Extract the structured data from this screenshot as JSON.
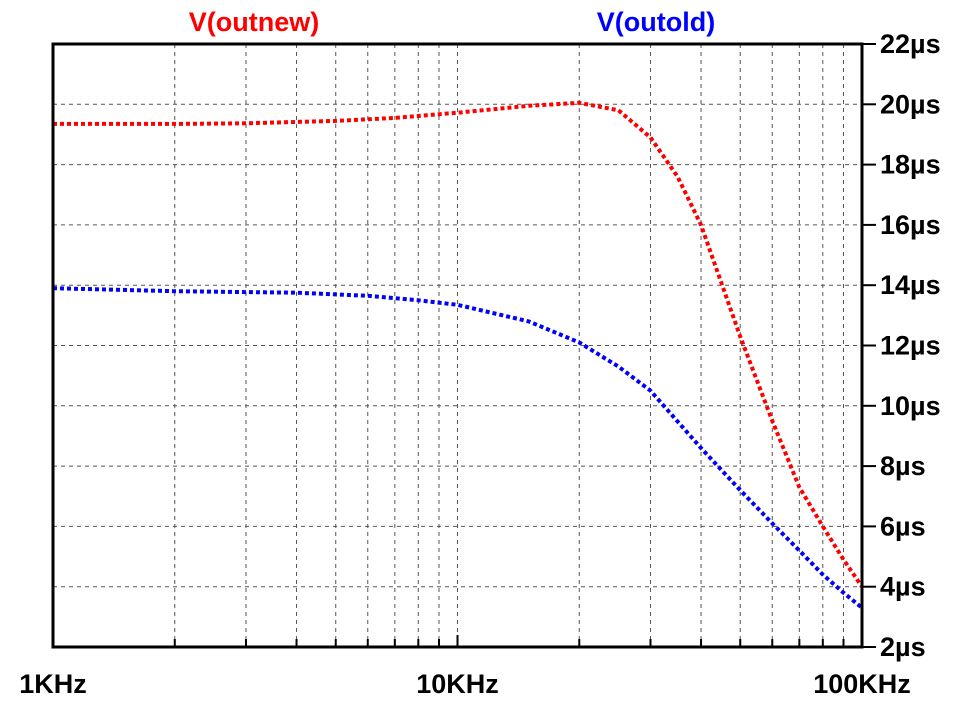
{
  "chart_data": {
    "type": "line",
    "title": "",
    "xlabel": "",
    "ylabel": "",
    "x_scale": "log",
    "xlim": [
      1000,
      100000
    ],
    "ylim": [
      2,
      22
    ],
    "x_ticks": [
      {
        "value": 1000,
        "label": "1KHz"
      },
      {
        "value": 10000,
        "label": "10KHz"
      },
      {
        "value": 100000,
        "label": "100KHz"
      }
    ],
    "y_ticks": [
      {
        "value": 2,
        "label": "2µs"
      },
      {
        "value": 4,
        "label": "4µs"
      },
      {
        "value": 6,
        "label": "6µs"
      },
      {
        "value": 8,
        "label": "8µs"
      },
      {
        "value": 10,
        "label": "10µs"
      },
      {
        "value": 12,
        "label": "12µs"
      },
      {
        "value": 14,
        "label": "14µs"
      },
      {
        "value": 16,
        "label": "16µs"
      },
      {
        "value": 18,
        "label": "18µs"
      },
      {
        "value": 20,
        "label": "20µs"
      },
      {
        "value": 22,
        "label": "22µs"
      }
    ],
    "grid": true,
    "legend_position": "top",
    "series": [
      {
        "name": "V(outnew)",
        "color": "#ff0000",
        "points": [
          [
            1000,
            19.35
          ],
          [
            2000,
            19.35
          ],
          [
            3000,
            19.37
          ],
          [
            5000,
            19.45
          ],
          [
            7000,
            19.55
          ],
          [
            10000,
            19.72
          ],
          [
            15000,
            19.95
          ],
          [
            20000,
            20.05
          ],
          [
            25000,
            19.8
          ],
          [
            30000,
            18.9
          ],
          [
            35000,
            17.6
          ],
          [
            40000,
            16.0
          ],
          [
            50000,
            12.3
          ],
          [
            60000,
            9.5
          ],
          [
            70000,
            7.3
          ],
          [
            80000,
            6.0
          ],
          [
            90000,
            4.9
          ],
          [
            100000,
            4.0
          ]
        ]
      },
      {
        "name": "V(outold)",
        "color": "#0000ff",
        "points": [
          [
            1000,
            13.9
          ],
          [
            2000,
            13.8
          ],
          [
            4000,
            13.75
          ],
          [
            6000,
            13.65
          ],
          [
            8000,
            13.5
          ],
          [
            10000,
            13.35
          ],
          [
            15000,
            12.8
          ],
          [
            20000,
            12.1
          ],
          [
            25000,
            11.3
          ],
          [
            30000,
            10.5
          ],
          [
            40000,
            8.6
          ],
          [
            50000,
            7.2
          ],
          [
            60000,
            6.1
          ],
          [
            70000,
            5.2
          ],
          [
            80000,
            4.4
          ],
          [
            90000,
            3.8
          ],
          [
            100000,
            3.3
          ]
        ]
      }
    ]
  }
}
